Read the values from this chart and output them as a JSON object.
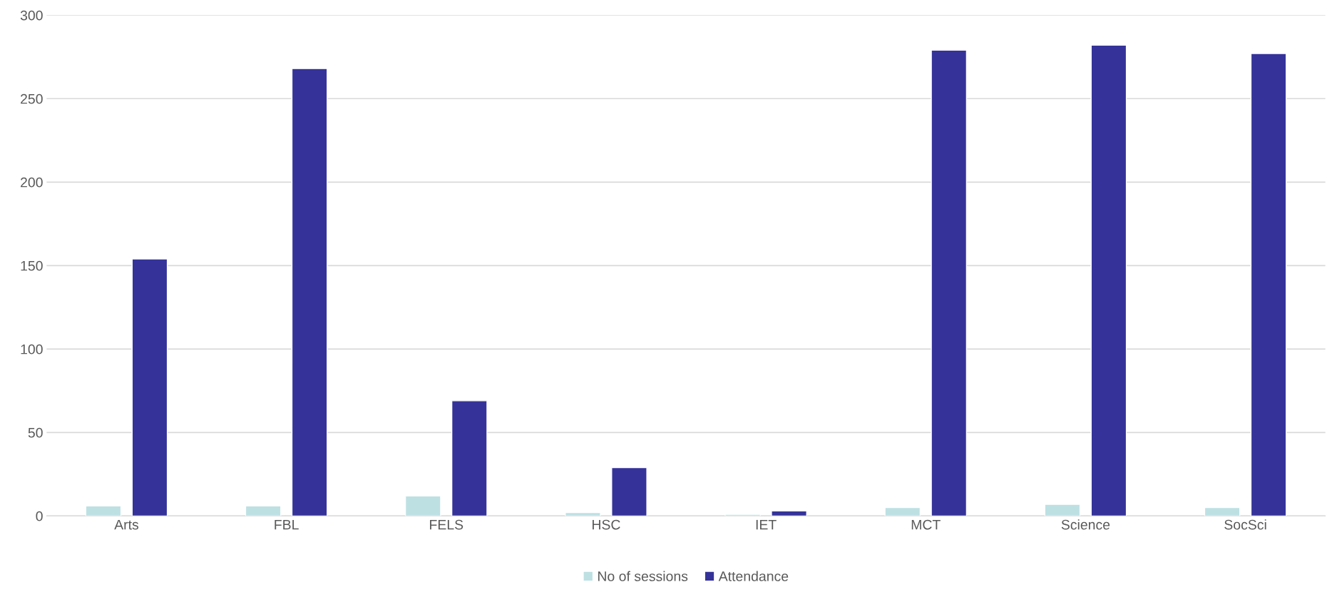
{
  "chart_data": {
    "type": "bar",
    "categories": [
      "Arts",
      "FBL",
      "FELS",
      "HSC",
      "IET",
      "MCT",
      "Science",
      "SocSci"
    ],
    "series": [
      {
        "name": "No of sessions",
        "color": "#bde0e3",
        "values": [
          6,
          6,
          12,
          2,
          1,
          5,
          7,
          5
        ]
      },
      {
        "name": "Attendance",
        "color": "#353399",
        "values": [
          154,
          268,
          69,
          29,
          3,
          279,
          282,
          277
        ]
      }
    ],
    "ylim": [
      0,
      300
    ],
    "yticks": [
      0,
      50,
      100,
      150,
      200,
      250,
      300
    ],
    "grid": "y",
    "legend": "bottom"
  }
}
